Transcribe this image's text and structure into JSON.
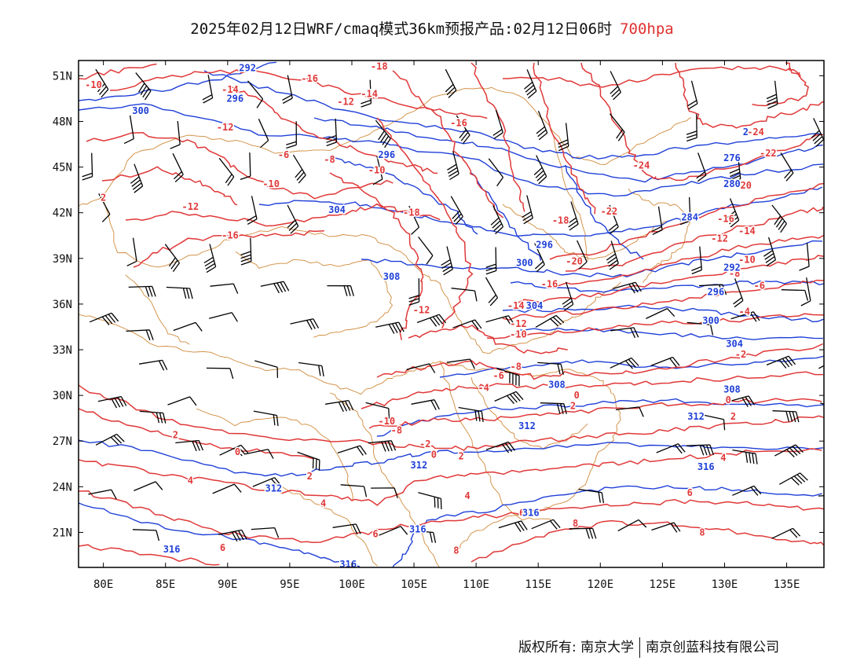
{
  "title": {
    "main": "2025年02月12日WRF/cmaq模式36km预报产品:02月12日06时",
    "level": "700hpa",
    "level_color": "#e03030"
  },
  "axes": {
    "lon_labels": [
      "80E",
      "85E",
      "90E",
      "95E",
      "100E",
      "105E",
      "110E",
      "115E",
      "120E",
      "125E",
      "130E",
      "135E"
    ],
    "lon_values": [
      80,
      85,
      90,
      95,
      100,
      105,
      110,
      115,
      120,
      125,
      130,
      135
    ],
    "lat_labels": [
      "51N",
      "48N",
      "45N",
      "42N",
      "39N",
      "36N",
      "33N",
      "30N",
      "27N",
      "24N",
      "21N"
    ],
    "lat_values": [
      51,
      48,
      45,
      42,
      39,
      36,
      33,
      30,
      27,
      24,
      21
    ],
    "lon_range": [
      78,
      138
    ],
    "lat_range": [
      18.7,
      52
    ]
  },
  "colors": {
    "temperature": "#e03838",
    "height": "#2040d8",
    "border": "#d08a3a",
    "wind": "#000000"
  },
  "temperature_labels": [
    {
      "text": "-10",
      "lon": 79.2,
      "lat": 50.4
    },
    {
      "text": "-14",
      "lon": 90.2,
      "lat": 50.1
    },
    {
      "text": "-12",
      "lon": 89.8,
      "lat": 47.6
    },
    {
      "text": "-16",
      "lon": 96.6,
      "lat": 50.8
    },
    {
      "text": "-18",
      "lon": 102.2,
      "lat": 51.6
    },
    {
      "text": "-12",
      "lon": 99.5,
      "lat": 49.3
    },
    {
      "text": "-14",
      "lon": 101.4,
      "lat": 49.8
    },
    {
      "text": "-6",
      "lon": 94.5,
      "lat": 45.8
    },
    {
      "text": "-8",
      "lon": 98.2,
      "lat": 45.5
    },
    {
      "text": "-10",
      "lon": 102.0,
      "lat": 44.8
    },
    {
      "text": "-10",
      "lon": 93.5,
      "lat": 43.9
    },
    {
      "text": "-12",
      "lon": 87.0,
      "lat": 42.4
    },
    {
      "text": "-16",
      "lon": 90.2,
      "lat": 40.5
    },
    {
      "text": "-16",
      "lon": 108.6,
      "lat": 47.9
    },
    {
      "text": "-18",
      "lon": 104.8,
      "lat": 42.0
    },
    {
      "text": "-18",
      "lon": 116.8,
      "lat": 41.5
    },
    {
      "text": "-24",
      "lon": 132.5,
      "lat": 47.3
    },
    {
      "text": "-22",
      "lon": 133.5,
      "lat": 45.9
    },
    {
      "text": "-24",
      "lon": 123.3,
      "lat": 45.1
    },
    {
      "text": "-22",
      "lon": 120.7,
      "lat": 42.1
    },
    {
      "text": "-20",
      "lon": 131.5,
      "lat": 43.8
    },
    {
      "text": "-20",
      "lon": 117.9,
      "lat": 38.8
    },
    {
      "text": "-16",
      "lon": 130.1,
      "lat": 41.6
    },
    {
      "text": "-14",
      "lon": 131.8,
      "lat": 40.8
    },
    {
      "text": "-12",
      "lon": 129.6,
      "lat": 40.3
    },
    {
      "text": "-10",
      "lon": 131.8,
      "lat": 38.9
    },
    {
      "text": "-8",
      "lon": 130.8,
      "lat": 38.0
    },
    {
      "text": "-16",
      "lon": 115.9,
      "lat": 37.3
    },
    {
      "text": "-6",
      "lon": 132.8,
      "lat": 37.2
    },
    {
      "text": "-4",
      "lon": 131.6,
      "lat": 35.5
    },
    {
      "text": "-14",
      "lon": 113.2,
      "lat": 35.9
    },
    {
      "text": "-12",
      "lon": 113.4,
      "lat": 34.7
    },
    {
      "text": "-10",
      "lon": 113.4,
      "lat": 34.0
    },
    {
      "text": "-12",
      "lon": 105.6,
      "lat": 35.6
    },
    {
      "text": "-2",
      "lon": 131.3,
      "lat": 32.7
    },
    {
      "text": "-8",
      "lon": 113.2,
      "lat": 31.9
    },
    {
      "text": "-6",
      "lon": 111.8,
      "lat": 31.3
    },
    {
      "text": "-4",
      "lon": 110.6,
      "lat": 30.5
    },
    {
      "text": "0",
      "lon": 118.1,
      "lat": 30.0
    },
    {
      "text": "0",
      "lon": 130.3,
      "lat": 29.7
    },
    {
      "text": "2",
      "lon": 117.8,
      "lat": 29.3
    },
    {
      "text": "2",
      "lon": 130.7,
      "lat": 28.6
    },
    {
      "text": "-10",
      "lon": 102.8,
      "lat": 28.3
    },
    {
      "text": "-8",
      "lon": 103.6,
      "lat": 27.7
    },
    {
      "text": "-2",
      "lon": 105.9,
      "lat": 26.8
    },
    {
      "text": "0",
      "lon": 106.6,
      "lat": 26.1
    },
    {
      "text": "2",
      "lon": 108.8,
      "lat": 26.0
    },
    {
      "text": "2",
      "lon": 85.8,
      "lat": 27.4
    },
    {
      "text": "0",
      "lon": 90.8,
      "lat": 26.3
    },
    {
      "text": "2",
      "lon": 96.6,
      "lat": 24.7
    },
    {
      "text": "4",
      "lon": 87.0,
      "lat": 24.4
    },
    {
      "text": "4",
      "lon": 97.7,
      "lat": 22.9
    },
    {
      "text": "4",
      "lon": 109.3,
      "lat": 23.4
    },
    {
      "text": "4",
      "lon": 129.9,
      "lat": 25.9
    },
    {
      "text": "6",
      "lon": 127.2,
      "lat": 23.6
    },
    {
      "text": "6",
      "lon": 113.7,
      "lat": 22.3
    },
    {
      "text": "6",
      "lon": 101.9,
      "lat": 20.9
    },
    {
      "text": "6",
      "lon": 89.6,
      "lat": 20.0
    },
    {
      "text": "8",
      "lon": 118.0,
      "lat": 21.6
    },
    {
      "text": "8",
      "lon": 128.2,
      "lat": 21.0
    },
    {
      "text": "8",
      "lon": 108.4,
      "lat": 19.8
    },
    {
      "text": "2",
      "lon": 80.0,
      "lat": 43.0
    }
  ],
  "height_labels": [
    {
      "text": "300",
      "lon": 83.0,
      "lat": 48.7
    },
    {
      "text": "296",
      "lon": 90.6,
      "lat": 49.5
    },
    {
      "text": "292",
      "lon": 91.6,
      "lat": 51.5
    },
    {
      "text": "296",
      "lon": 102.8,
      "lat": 45.8
    },
    {
      "text": "304",
      "lon": 98.8,
      "lat": 42.2
    },
    {
      "text": "308",
      "lon": 103.2,
      "lat": 37.8
    },
    {
      "text": "296",
      "lon": 115.5,
      "lat": 39.9
    },
    {
      "text": "300",
      "lon": 113.9,
      "lat": 38.7
    },
    {
      "text": "304",
      "lon": 114.7,
      "lat": 35.9
    },
    {
      "text": "308",
      "lon": 116.5,
      "lat": 30.7
    },
    {
      "text": "312",
      "lon": 114.1,
      "lat": 28.0
    },
    {
      "text": "312",
      "lon": 105.4,
      "lat": 25.4
    },
    {
      "text": "312",
      "lon": 93.7,
      "lat": 23.9
    },
    {
      "text": "316",
      "lon": 105.3,
      "lat": 21.2
    },
    {
      "text": "316",
      "lon": 114.4,
      "lat": 22.3
    },
    {
      "text": "316",
      "lon": 85.5,
      "lat": 19.9
    },
    {
      "text": "316",
      "lon": 99.7,
      "lat": 18.9
    },
    {
      "text": "316",
      "lon": 128.5,
      "lat": 25.3
    },
    {
      "text": "312",
      "lon": 127.7,
      "lat": 28.6
    },
    {
      "text": "308",
      "lon": 130.6,
      "lat": 30.4
    },
    {
      "text": "304",
      "lon": 130.8,
      "lat": 33.4
    },
    {
      "text": "300",
      "lon": 128.9,
      "lat": 34.9
    },
    {
      "text": "296",
      "lon": 129.3,
      "lat": 36.8
    },
    {
      "text": "292",
      "lon": 130.6,
      "lat": 38.4
    },
    {
      "text": "284",
      "lon": 127.2,
      "lat": 41.7
    },
    {
      "text": "280",
      "lon": 130.6,
      "lat": 43.9
    },
    {
      "text": "276",
      "lon": 130.6,
      "lat": 45.6
    },
    {
      "text": "2",
      "lon": 131.7,
      "lat": 47.3
    }
  ],
  "footer": {
    "owner": "版权所有: 南京大学",
    "company": "南京创蓝科技有限公司"
  }
}
